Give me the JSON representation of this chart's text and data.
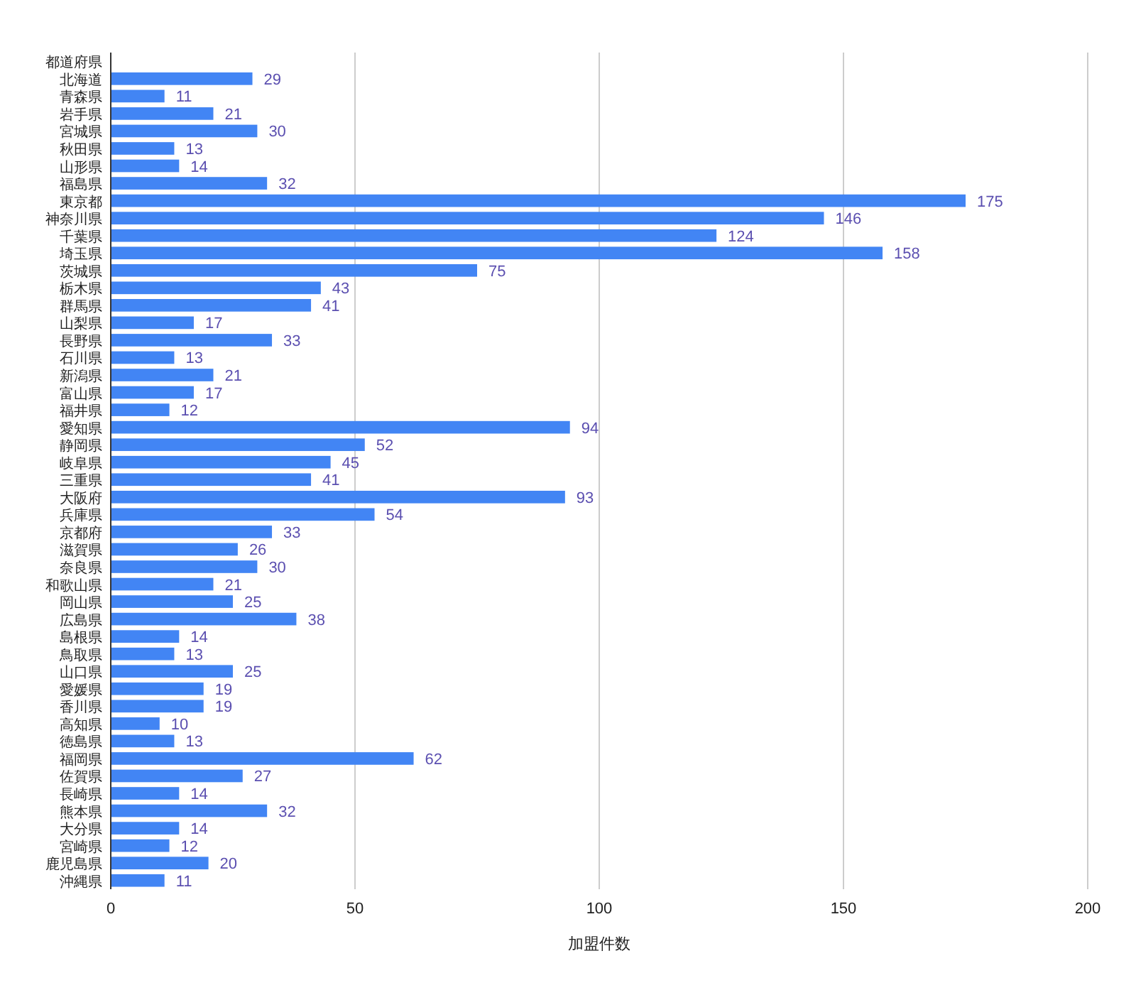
{
  "chart_data": {
    "type": "bar",
    "orientation": "horizontal",
    "xlabel": "加盟件数",
    "categories": [
      "都道府県",
      "北海道",
      "青森県",
      "岩手県",
      "宮城県",
      "秋田県",
      "山形県",
      "福島県",
      "東京都",
      "神奈川県",
      "千葉県",
      "埼玉県",
      "茨城県",
      "栃木県",
      "群馬県",
      "山梨県",
      "長野県",
      "石川県",
      "新潟県",
      "富山県",
      "福井県",
      "愛知県",
      "静岡県",
      "岐阜県",
      "三重県",
      "大阪府",
      "兵庫県",
      "京都府",
      "滋賀県",
      "奈良県",
      "和歌山県",
      "岡山県",
      "広島県",
      "島根県",
      "鳥取県",
      "山口県",
      "愛媛県",
      "香川県",
      "高知県",
      "徳島県",
      "福岡県",
      "佐賀県",
      "長崎県",
      "熊本県",
      "大分県",
      "宮崎県",
      "鹿児島県",
      "沖縄県"
    ],
    "values": [
      null,
      29,
      11,
      21,
      30,
      13,
      14,
      32,
      175,
      146,
      124,
      158,
      75,
      43,
      41,
      17,
      33,
      13,
      21,
      17,
      12,
      94,
      52,
      45,
      41,
      93,
      54,
      33,
      26,
      30,
      21,
      25,
      38,
      14,
      13,
      25,
      19,
      19,
      10,
      13,
      62,
      27,
      14,
      32,
      14,
      12,
      20,
      11
    ],
    "color": "#4285f4",
    "data_labels": true,
    "xlim": [
      0,
      200
    ],
    "xticks": [
      0,
      50,
      100,
      150,
      200
    ],
    "grid": "x"
  }
}
